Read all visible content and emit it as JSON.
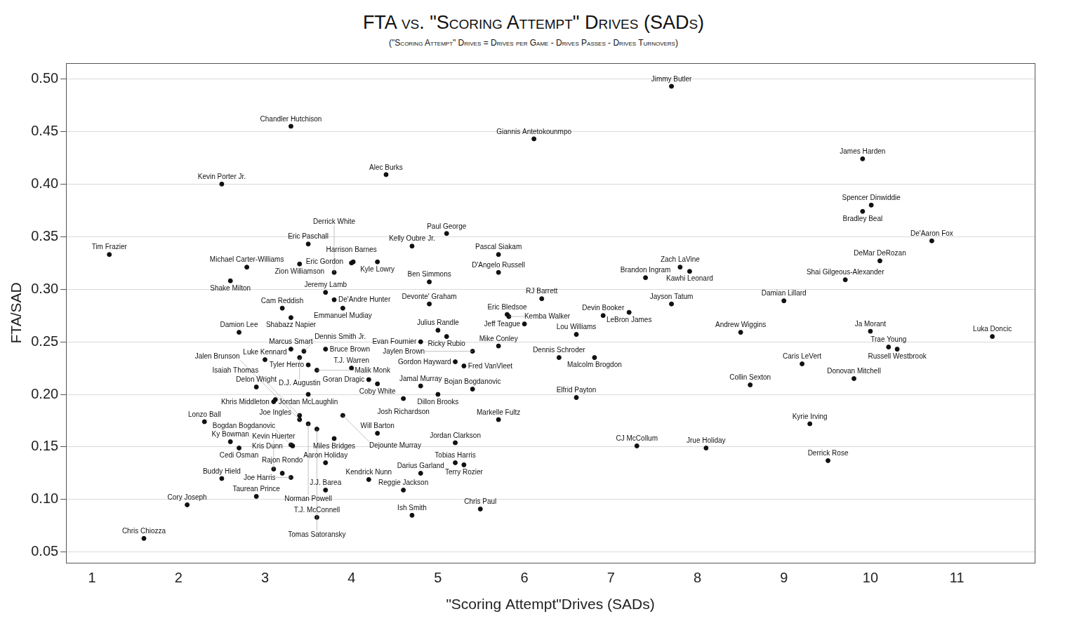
{
  "chart_data": {
    "type": "scatter",
    "title": "FTA vs. \"Scoring Attempt\" Drives (SADs)",
    "subtitle": "(\"Scoring Attempt\" Drives = Drives per Game - Drives Passes - Drives Turnovers)",
    "xlabel": "\"Scoring Attempt\"Drives (SADs)",
    "ylabel": "FTA/SAD",
    "color": "#111111",
    "marker": "circle",
    "grid": "y",
    "xlim": [
      0.7,
      11.9
    ],
    "ylim": [
      0.04,
      0.515
    ],
    "xticks": [
      1,
      2,
      3,
      4,
      5,
      6,
      7,
      8,
      9,
      10,
      11
    ],
    "yticks": [
      {
        "value": 0.05,
        "label": "0.05"
      },
      {
        "value": 0.1,
        "label": "0.10"
      },
      {
        "value": 0.15,
        "label": "0.15"
      },
      {
        "value": 0.2,
        "label": "0.20"
      },
      {
        "value": 0.25,
        "label": "0.25"
      },
      {
        "value": 0.3,
        "label": "0.30"
      },
      {
        "value": 0.35,
        "label": "0.35"
      },
      {
        "value": 0.4,
        "label": "0.40"
      },
      {
        "value": 0.45,
        "label": "0.45"
      },
      {
        "value": 0.5,
        "label": "0.50"
      }
    ],
    "labels": [
      "Jimmy Butler",
      "Chandler Hutchison",
      "Giannis Antetokounmpo",
      "James Harden",
      "Alec Burks",
      "Kevin Porter Jr.",
      "Spencer Dinwiddie",
      "Bradley Beal",
      "De'Aaron Fox",
      "Paul George",
      "Tim Frazier",
      "Eric Paschall",
      "Kelly Oubre Jr.",
      "Pascal Siakam",
      "Michael Carter-Williams",
      "Zion Williamson",
      "Harrison Barnes",
      "Eric Gordon",
      "Kyle Lowry",
      "D'Angelo Russell",
      "Derrick White",
      "Ben Simmons",
      "Shake Milton",
      "Brandon Ingram",
      "Zach LaVine",
      "Kawhi Leonard",
      "DeMar DeRozan",
      "Shai Gilgeous-Alexander",
      "Jeremy Lamb",
      "De'Andre Hunter",
      "Emmanuel Mudiay",
      "Cam Reddish",
      "Shabazz Napier",
      "RJ Barrett",
      "Devonte' Graham",
      "Jayson Tatum",
      "Damian Lillard",
      "Eric Bledsoe",
      "Kemba Walker",
      "Devin Booker",
      "LeBron James",
      "Julius Randle",
      "Ricky Rubio",
      "Damion Lee",
      "Lou Williams",
      "Andrew Wiggins",
      "Ja Morant",
      "Luka Doncic",
      "Trae Young",
      "Russell Westbrook",
      "Evan Fournier",
      "Jaylen Brown",
      "Mike Conley",
      "Jeff Teague",
      "Marcus Smart",
      "Dennis Smith Jr.",
      "Bruce Brown",
      "D.J. Augustin",
      "Luke Kennard",
      "Tyler Herro",
      "Malik Monk",
      "T.J. Warren",
      "Gordon Hayward",
      "Fred VanVleet",
      "Dennis Schroder",
      "Malcolm Brogdon",
      "Caris LeVert",
      "Donovan Mitchell",
      "Collin Sexton",
      "Delon Wright",
      "Jordan McLaughlin",
      "Khris Middleton",
      "Joe Ingles",
      "Coby White",
      "Goran Dragic",
      "Jamal Murray",
      "Dillon Brooks",
      "Bojan Bogdanovic",
      "Josh Richardson",
      "Elfrid Payton",
      "Kyrie Irving",
      "Lonzo Ball",
      "Isaiah Thomas",
      "Dejounte Murray",
      "Jalen Brunson",
      "Norman Powell",
      "Markelle Fultz",
      "Will Barton",
      "Tomas Satoransky",
      "Miles Bridges",
      "Bogdan Bogdanovic",
      "Kris Dunn",
      "Ky Bowman",
      "Cedi Osman",
      "Jordan Clarkson",
      "CJ McCollum",
      "Jrue Holiday",
      "Derrick Rose",
      "Aaron Holiday",
      "Tobias Harris",
      "Terry Rozier",
      "Kevin Huerter",
      "Rajon Rondo",
      "Joe Harris",
      "Darius Garland",
      "Buddy Hield",
      "Kendrick Nunn",
      "J.J. Barea",
      "Reggie Jackson",
      "Taurean Prince",
      "Cory Joseph",
      "Chris Paul",
      "T.J. McConnell",
      "Ish Smith",
      "Chris Chiozza"
    ],
    "x": [
      7.7,
      3.3,
      6.11,
      9.91,
      4.4,
      2.5,
      10.01,
      9.91,
      10.71,
      5.1,
      1.2,
      3.5,
      4.7,
      5.7,
      2.79,
      3.4,
      4.0,
      4.02,
      4.3,
      5.7,
      3.8,
      4.9,
      2.6,
      7.4,
      7.8,
      7.91,
      10.11,
      9.71,
      3.7,
      3.8,
      3.9,
      3.2,
      3.3,
      6.2,
      4.9,
      7.7,
      9.0,
      5.8,
      5.82,
      6.91,
      7.21,
      5.0,
      5.1,
      2.7,
      6.6,
      8.5,
      10.0,
      11.41,
      10.21,
      10.31,
      4.8,
      5.4,
      5.7,
      6.0,
      3.3,
      3.45,
      3.7,
      3.4,
      3.0,
      3.5,
      3.6,
      4.0,
      5.2,
      5.3,
      6.4,
      6.81,
      9.21,
      9.81,
      8.61,
      2.9,
      3.5,
      3.1,
      3.12,
      4.3,
      4.2,
      4.8,
      5.0,
      5.4,
      4.6,
      6.6,
      9.3,
      2.3,
      3.4,
      3.9,
      3.4,
      3.5,
      5.7,
      4.3,
      3.6,
      3.8,
      3.3,
      3.32,
      2.6,
      2.7,
      5.2,
      7.3,
      8.1,
      9.51,
      3.7,
      5.2,
      5.3,
      3.1,
      3.2,
      3.3,
      4.8,
      2.5,
      4.2,
      3.7,
      4.6,
      2.9,
      2.1,
      5.49,
      3.6,
      4.7,
      1.6
    ],
    "values": [
      0.493,
      0.455,
      0.443,
      0.424,
      0.409,
      0.4,
      0.38,
      0.374,
      0.346,
      0.353,
      0.333,
      0.343,
      0.341,
      0.333,
      0.321,
      0.324,
      0.325,
      0.326,
      0.326,
      0.316,
      0.316,
      0.307,
      0.308,
      0.311,
      0.321,
      0.317,
      0.327,
      0.309,
      0.297,
      0.29,
      0.282,
      0.282,
      0.273,
      0.291,
      0.286,
      0.286,
      0.289,
      0.276,
      0.274,
      0.275,
      0.278,
      0.261,
      0.255,
      0.259,
      0.257,
      0.259,
      0.26,
      0.255,
      0.245,
      0.243,
      0.25,
      0.241,
      0.246,
      0.267,
      0.243,
      0.241,
      0.243,
      0.235,
      0.233,
      0.228,
      0.223,
      0.225,
      0.231,
      0.227,
      0.235,
      0.235,
      0.229,
      0.215,
      0.209,
      0.207,
      0.2,
      0.193,
      0.195,
      0.21,
      0.214,
      0.208,
      0.2,
      0.205,
      0.196,
      0.197,
      0.172,
      0.174,
      0.18,
      0.18,
      0.176,
      0.172,
      0.176,
      0.163,
      0.167,
      0.158,
      0.152,
      0.151,
      0.155,
      0.149,
      0.154,
      0.151,
      0.149,
      0.137,
      0.135,
      0.135,
      0.133,
      0.129,
      0.125,
      0.121,
      0.125,
      0.12,
      0.119,
      0.109,
      0.109,
      0.103,
      0.095,
      0.091,
      0.083,
      0.085,
      0.063
    ]
  }
}
